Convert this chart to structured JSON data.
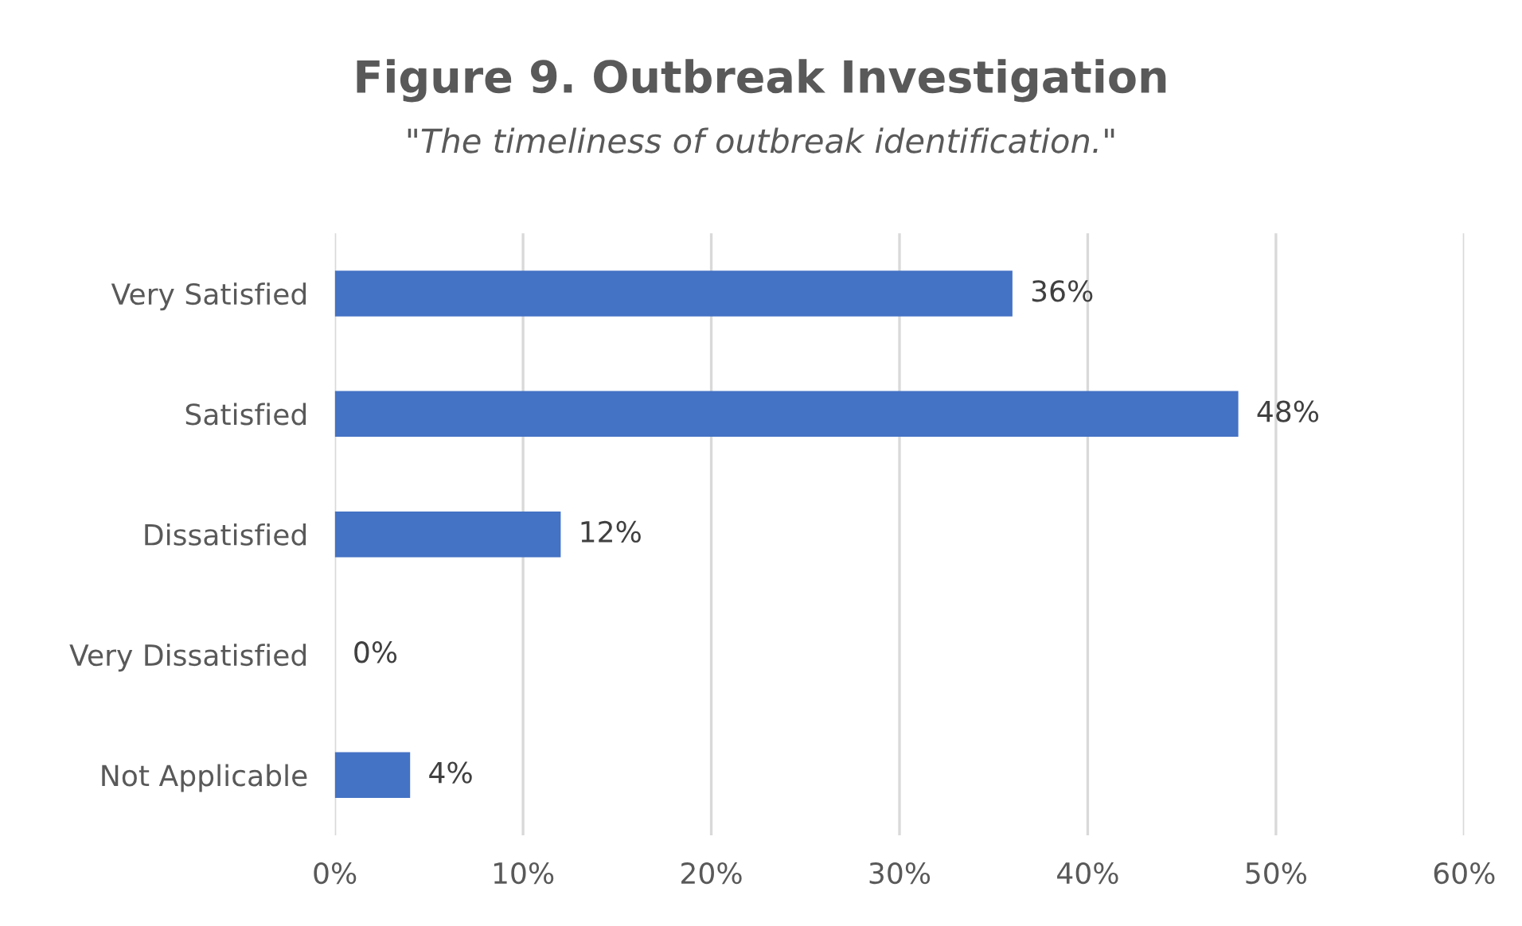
{
  "chart_data": {
    "type": "bar",
    "orientation": "horizontal",
    "title": "Figure 9. Outbreak Investigation",
    "subtitle": "\"The timeliness of outbreak identification.\"",
    "categories": [
      "Very Satisfied",
      "Satisfied",
      "Dissatisfied",
      "Very Dissatisfied",
      "Not Applicable"
    ],
    "values": [
      36,
      48,
      12,
      0,
      4
    ],
    "value_labels": [
      "36%",
      "48%",
      "12%",
      "0%",
      "4%"
    ],
    "color": "#4472c4",
    "xlim": [
      0,
      60
    ],
    "xticks": [
      {
        "value": 0,
        "label": "0%"
      },
      {
        "value": 10,
        "label": "10%"
      },
      {
        "value": 20,
        "label": "20%"
      },
      {
        "value": 30,
        "label": "30%"
      },
      {
        "value": 40,
        "label": "40%"
      },
      {
        "value": 50,
        "label": "50%"
      },
      {
        "value": 60,
        "label": "60%"
      }
    ],
    "grid": "x",
    "legend": false
  }
}
